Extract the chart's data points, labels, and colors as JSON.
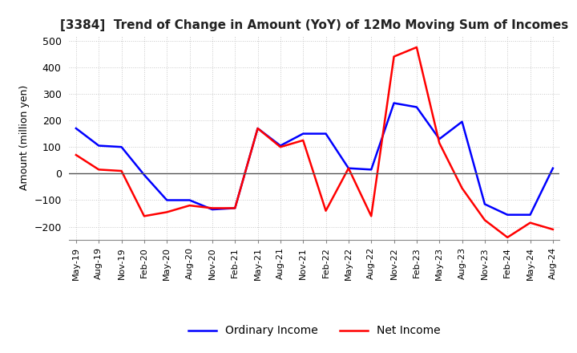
{
  "title": "[3384]  Trend of Change in Amount (YoY) of 12Mo Moving Sum of Incomes",
  "ylabel": "Amount (million yen)",
  "ylim": [
    -250,
    520
  ],
  "yticks": [
    -200,
    -100,
    0,
    100,
    200,
    300,
    400,
    500
  ],
  "dates": [
    "May-19",
    "Aug-19",
    "Nov-19",
    "Feb-20",
    "May-20",
    "Aug-20",
    "Nov-20",
    "Feb-21",
    "May-21",
    "Aug-21",
    "Nov-21",
    "Feb-22",
    "May-22",
    "Aug-22",
    "Nov-22",
    "Feb-23",
    "May-23",
    "Aug-23",
    "Nov-23",
    "Feb-24",
    "May-24",
    "Aug-24"
  ],
  "ordinary_income": [
    170,
    105,
    100,
    -5,
    -100,
    -100,
    -135,
    -130,
    170,
    105,
    150,
    150,
    20,
    15,
    265,
    250,
    130,
    195,
    -115,
    -155,
    -155,
    20
  ],
  "net_income": [
    70,
    15,
    10,
    -160,
    -145,
    -120,
    -130,
    -130,
    170,
    100,
    125,
    -140,
    20,
    -160,
    440,
    475,
    115,
    -55,
    -175,
    -240,
    -185,
    -210
  ],
  "ordinary_color": "#0000ff",
  "net_color": "#ff0000",
  "legend_labels": [
    "Ordinary Income",
    "Net Income"
  ],
  "background_color": "#ffffff",
  "grid_color": "#c8c8c8"
}
